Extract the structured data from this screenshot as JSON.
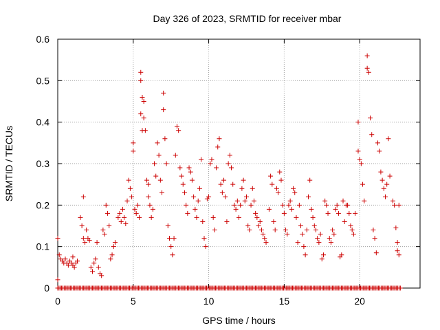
{
  "chart_data": {
    "type": "scatter",
    "title": "Day 326 of 2023, SRMTID for receiver mbar",
    "xlabel": "GPS time / hours",
    "ylabel": "SRMTID / TECUs",
    "xlim": [
      0,
      24
    ],
    "ylim": [
      0,
      0.6
    ],
    "xticks": [
      0,
      5,
      10,
      15,
      20
    ],
    "yticks": [
      0,
      0.1,
      0.2,
      0.3,
      0.4,
      0.5,
      0.6
    ],
    "xtick_labels": [
      "0",
      "5",
      "10",
      "15",
      "20"
    ],
    "ytick_labels": [
      "0",
      "0.1",
      "0.2",
      "0.3",
      "0.4",
      "0.5",
      "0.6"
    ],
    "grid": true,
    "marker": "+",
    "color": "#cc0000",
    "series": [
      {
        "name": "SRMTID",
        "points": [
          [
            0.0,
            0.12
          ],
          [
            0.0,
            0.02
          ],
          [
            0.1,
            0.08
          ],
          [
            0.2,
            0.07
          ],
          [
            0.3,
            0.065
          ],
          [
            0.4,
            0.06
          ],
          [
            0.5,
            0.07
          ],
          [
            0.6,
            0.06
          ],
          [
            0.7,
            0.055
          ],
          [
            0.8,
            0.065
          ],
          [
            0.9,
            0.06
          ],
          [
            1.0,
            0.055
          ],
          [
            1.0,
            0.075
          ],
          [
            1.1,
            0.05
          ],
          [
            1.2,
            0.06
          ],
          [
            1.3,
            0.065
          ],
          [
            1.5,
            0.17
          ],
          [
            1.6,
            0.15
          ],
          [
            1.7,
            0.22
          ],
          [
            1.7,
            0.12
          ],
          [
            1.8,
            0.11
          ],
          [
            1.9,
            0.14
          ],
          [
            2.0,
            0.12
          ],
          [
            2.1,
            0.115
          ],
          [
            2.2,
            0.05
          ],
          [
            2.3,
            0.04
          ],
          [
            2.4,
            0.06
          ],
          [
            2.5,
            0.07
          ],
          [
            2.6,
            0.11
          ],
          [
            2.7,
            0.05
          ],
          [
            2.8,
            0.035
          ],
          [
            2.9,
            0.03
          ],
          [
            3.0,
            0.14
          ],
          [
            3.1,
            0.13
          ],
          [
            3.2,
            0.2
          ],
          [
            3.3,
            0.18
          ],
          [
            3.4,
            0.15
          ],
          [
            3.5,
            0.07
          ],
          [
            3.6,
            0.08
          ],
          [
            3.7,
            0.1
          ],
          [
            3.8,
            0.11
          ],
          [
            4.0,
            0.17
          ],
          [
            4.1,
            0.18
          ],
          [
            4.2,
            0.16
          ],
          [
            4.3,
            0.19
          ],
          [
            4.4,
            0.17
          ],
          [
            4.5,
            0.155
          ],
          [
            4.6,
            0.21
          ],
          [
            4.7,
            0.26
          ],
          [
            4.8,
            0.24
          ],
          [
            4.9,
            0.22
          ],
          [
            5.0,
            0.35
          ],
          [
            5.0,
            0.33
          ],
          [
            5.1,
            0.19
          ],
          [
            5.2,
            0.18
          ],
          [
            5.3,
            0.2
          ],
          [
            5.4,
            0.17
          ],
          [
            5.5,
            0.52
          ],
          [
            5.5,
            0.5
          ],
          [
            5.6,
            0.46
          ],
          [
            5.7,
            0.45
          ],
          [
            5.5,
            0.42
          ],
          [
            5.6,
            0.38
          ],
          [
            5.7,
            0.41
          ],
          [
            5.8,
            0.38
          ],
          [
            5.9,
            0.26
          ],
          [
            6.0,
            0.25
          ],
          [
            6.0,
            0.22
          ],
          [
            6.1,
            0.2
          ],
          [
            6.2,
            0.17
          ],
          [
            6.3,
            0.19
          ],
          [
            6.4,
            0.3
          ],
          [
            6.5,
            0.27
          ],
          [
            6.6,
            0.35
          ],
          [
            6.7,
            0.32
          ],
          [
            6.8,
            0.26
          ],
          [
            6.9,
            0.23
          ],
          [
            7.0,
            0.47
          ],
          [
            7.0,
            0.43
          ],
          [
            7.1,
            0.36
          ],
          [
            7.2,
            0.3
          ],
          [
            7.3,
            0.15
          ],
          [
            7.4,
            0.12
          ],
          [
            7.5,
            0.1
          ],
          [
            7.6,
            0.08
          ],
          [
            7.7,
            0.12
          ],
          [
            7.8,
            0.32
          ],
          [
            7.9,
            0.39
          ],
          [
            8.0,
            0.38
          ],
          [
            8.1,
            0.29
          ],
          [
            8.2,
            0.27
          ],
          [
            8.3,
            0.25
          ],
          [
            8.4,
            0.23
          ],
          [
            8.5,
            0.2
          ],
          [
            8.6,
            0.18
          ],
          [
            8.7,
            0.29
          ],
          [
            8.8,
            0.28
          ],
          [
            8.9,
            0.26
          ],
          [
            9.0,
            0.22
          ],
          [
            9.1,
            0.19
          ],
          [
            9.2,
            0.17
          ],
          [
            9.3,
            0.21
          ],
          [
            9.4,
            0.24
          ],
          [
            9.5,
            0.31
          ],
          [
            9.6,
            0.16
          ],
          [
            9.7,
            0.12
          ],
          [
            9.8,
            0.1
          ],
          [
            9.9,
            0.215
          ],
          [
            10.0,
            0.22
          ],
          [
            10.1,
            0.3
          ],
          [
            10.2,
            0.31
          ],
          [
            10.3,
            0.17
          ],
          [
            10.4,
            0.14
          ],
          [
            10.5,
            0.29
          ],
          [
            10.6,
            0.34
          ],
          [
            10.7,
            0.36
          ],
          [
            10.8,
            0.25
          ],
          [
            10.9,
            0.23
          ],
          [
            11.0,
            0.26
          ],
          [
            11.1,
            0.22
          ],
          [
            11.2,
            0.16
          ],
          [
            11.3,
            0.3
          ],
          [
            11.4,
            0.32
          ],
          [
            11.5,
            0.29
          ],
          [
            11.6,
            0.25
          ],
          [
            11.7,
            0.2
          ],
          [
            11.8,
            0.19
          ],
          [
            11.9,
            0.21
          ],
          [
            12.0,
            0.17
          ],
          [
            12.1,
            0.2
          ],
          [
            12.2,
            0.24
          ],
          [
            12.3,
            0.26
          ],
          [
            12.4,
            0.21
          ],
          [
            12.5,
            0.22
          ],
          [
            12.6,
            0.15
          ],
          [
            12.7,
            0.14
          ],
          [
            12.8,
            0.2
          ],
          [
            12.9,
            0.24
          ],
          [
            13.0,
            0.21
          ],
          [
            13.1,
            0.18
          ],
          [
            13.2,
            0.17
          ],
          [
            13.3,
            0.15
          ],
          [
            13.4,
            0.16
          ],
          [
            13.5,
            0.14
          ],
          [
            13.6,
            0.13
          ],
          [
            13.7,
            0.12
          ],
          [
            13.8,
            0.11
          ],
          [
            14.0,
            0.19
          ],
          [
            14.1,
            0.27
          ],
          [
            14.2,
            0.25
          ],
          [
            14.3,
            0.16
          ],
          [
            14.4,
            0.14
          ],
          [
            14.5,
            0.24
          ],
          [
            14.6,
            0.23
          ],
          [
            14.7,
            0.28
          ],
          [
            14.8,
            0.26
          ],
          [
            14.9,
            0.2
          ],
          [
            15.0,
            0.18
          ],
          [
            15.1,
            0.14
          ],
          [
            15.2,
            0.13
          ],
          [
            15.3,
            0.2
          ],
          [
            15.4,
            0.21
          ],
          [
            15.5,
            0.19
          ],
          [
            15.6,
            0.24
          ],
          [
            15.7,
            0.23
          ],
          [
            15.8,
            0.17
          ],
          [
            15.9,
            0.11
          ],
          [
            16.0,
            0.2
          ],
          [
            16.1,
            0.15
          ],
          [
            16.2,
            0.13
          ],
          [
            16.3,
            0.1
          ],
          [
            16.4,
            0.08
          ],
          [
            16.5,
            0.14
          ],
          [
            16.6,
            0.22
          ],
          [
            16.7,
            0.26
          ],
          [
            16.8,
            0.19
          ],
          [
            16.9,
            0.17
          ],
          [
            17.0,
            0.15
          ],
          [
            17.1,
            0.14
          ],
          [
            17.2,
            0.12
          ],
          [
            17.3,
            0.11
          ],
          [
            17.4,
            0.13
          ],
          [
            17.5,
            0.07
          ],
          [
            17.6,
            0.08
          ],
          [
            17.7,
            0.21
          ],
          [
            17.8,
            0.2
          ],
          [
            17.9,
            0.18
          ],
          [
            18.0,
            0.12
          ],
          [
            18.1,
            0.11
          ],
          [
            18.2,
            0.14
          ],
          [
            18.3,
            0.13
          ],
          [
            18.4,
            0.19
          ],
          [
            18.5,
            0.2
          ],
          [
            18.6,
            0.18
          ],
          [
            18.7,
            0.075
          ],
          [
            18.8,
            0.08
          ],
          [
            18.9,
            0.21
          ],
          [
            19.0,
            0.16
          ],
          [
            19.1,
            0.2
          ],
          [
            19.2,
            0.2
          ],
          [
            19.3,
            0.18
          ],
          [
            19.4,
            0.15
          ],
          [
            19.5,
            0.14
          ],
          [
            19.6,
            0.13
          ],
          [
            19.7,
            0.18
          ],
          [
            19.9,
            0.4
          ],
          [
            19.9,
            0.33
          ],
          [
            20.0,
            0.31
          ],
          [
            20.1,
            0.3
          ],
          [
            20.2,
            0.25
          ],
          [
            20.3,
            0.21
          ],
          [
            20.5,
            0.56
          ],
          [
            20.5,
            0.53
          ],
          [
            20.6,
            0.52
          ],
          [
            20.7,
            0.41
          ],
          [
            20.8,
            0.37
          ],
          [
            20.9,
            0.14
          ],
          [
            21.0,
            0.12
          ],
          [
            21.1,
            0.085
          ],
          [
            21.2,
            0.35
          ],
          [
            21.3,
            0.33
          ],
          [
            21.4,
            0.28
          ],
          [
            21.5,
            0.26
          ],
          [
            21.6,
            0.24
          ],
          [
            21.7,
            0.22
          ],
          [
            21.8,
            0.25
          ],
          [
            21.9,
            0.36
          ],
          [
            22.0,
            0.27
          ],
          [
            22.2,
            0.21
          ],
          [
            22.3,
            0.2
          ],
          [
            22.4,
            0.145
          ],
          [
            22.5,
            0.11
          ],
          [
            22.5,
            0.09
          ],
          [
            22.6,
            0.08
          ],
          [
            22.6,
            0.2
          ]
        ]
      }
    ]
  }
}
